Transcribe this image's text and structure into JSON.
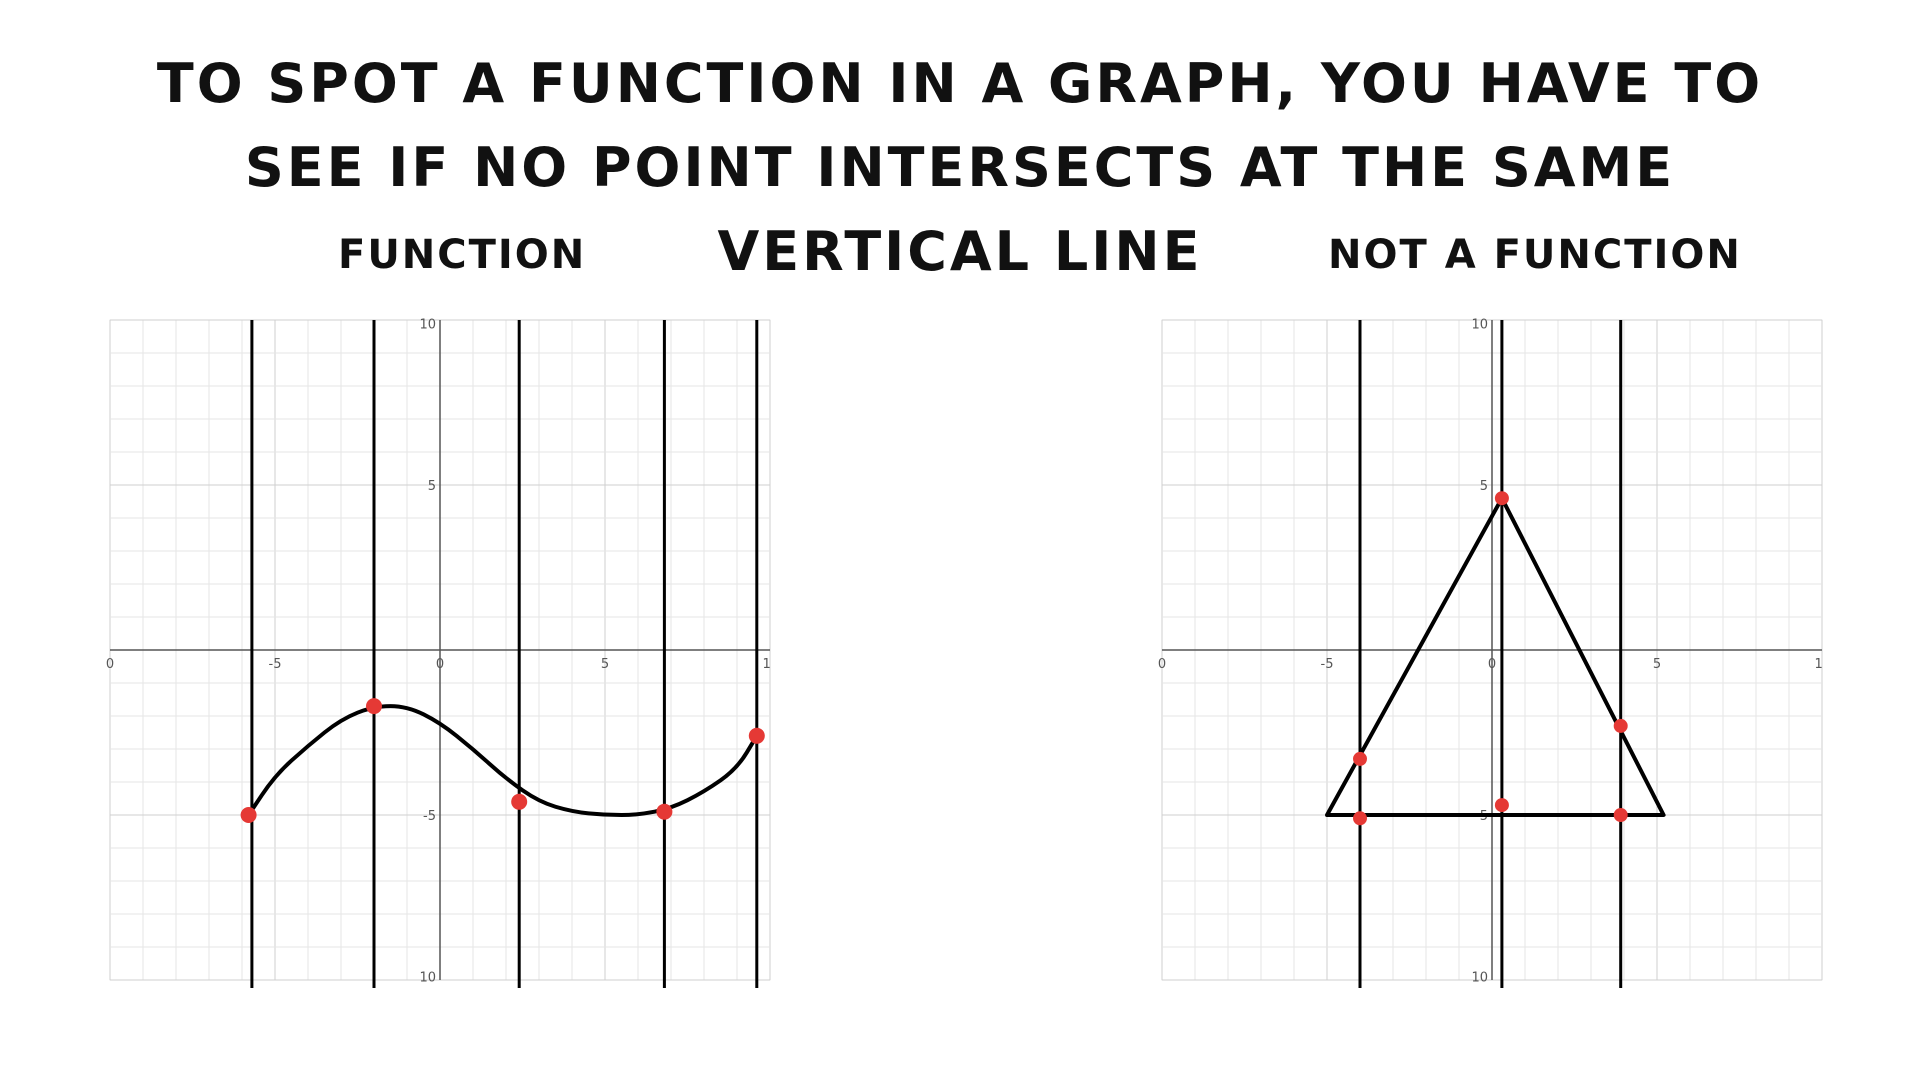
{
  "heading": "To spot a function in a graph, you have to see if no point intersects at the same vertical line",
  "panels": {
    "left": {
      "label": "Function",
      "x_ticks": [
        "0",
        "-5",
        "0",
        "5",
        "1"
      ],
      "y_ticks": [
        "10",
        "5",
        "-5",
        "10"
      ],
      "x_range": [
        -10,
        10
      ],
      "y_range": [
        -10,
        10
      ],
      "vertical_lines_x": [
        -5.7,
        -2,
        2.4,
        6.8,
        9.6
      ],
      "curve": [
        [
          -5.8,
          -5.0
        ],
        [
          -5.0,
          -3.8
        ],
        [
          -4.0,
          -2.9
        ],
        [
          -3.0,
          -2.1
        ],
        [
          -2.0,
          -1.7
        ],
        [
          -1.0,
          -1.7
        ],
        [
          0.0,
          -2.2
        ],
        [
          1.0,
          -3.0
        ],
        [
          2.0,
          -3.9
        ],
        [
          3.0,
          -4.6
        ],
        [
          4.0,
          -4.9
        ],
        [
          5.0,
          -5.0
        ],
        [
          6.0,
          -5.0
        ],
        [
          7.0,
          -4.8
        ],
        [
          8.0,
          -4.3
        ],
        [
          9.0,
          -3.6
        ],
        [
          9.6,
          -2.6
        ]
      ],
      "intersections": [
        [
          -5.8,
          -5.0
        ],
        [
          -2.0,
          -1.7
        ],
        [
          2.4,
          -4.6
        ],
        [
          6.8,
          -4.9
        ],
        [
          9.6,
          -2.6
        ]
      ],
      "colors": {
        "curve": "#000000",
        "point": "#e53935",
        "grid": "#e6e6e6",
        "axis": "#555555"
      }
    },
    "right": {
      "label": "not a function",
      "x_ticks": [
        "0",
        "-5",
        "0",
        "5",
        "1"
      ],
      "y_ticks": [
        "10",
        "5",
        "-5",
        "10"
      ],
      "x_range": [
        -10,
        10
      ],
      "y_range": [
        -10,
        10
      ],
      "vertical_lines_x": [
        -4,
        0.3,
        3.9
      ],
      "triangle": [
        [
          -5,
          -5
        ],
        [
          0.3,
          4.6
        ],
        [
          5.2,
          -5
        ]
      ],
      "intersections": [
        [
          -4,
          -3.3
        ],
        [
          -4,
          -5.1
        ],
        [
          0.3,
          4.6
        ],
        [
          0.3,
          -4.7
        ],
        [
          3.9,
          -2.3
        ],
        [
          3.9,
          -5.0
        ]
      ],
      "colors": {
        "shape": "#000000",
        "point": "#e53935",
        "grid": "#e6e6e6",
        "axis": "#555555"
      }
    }
  }
}
